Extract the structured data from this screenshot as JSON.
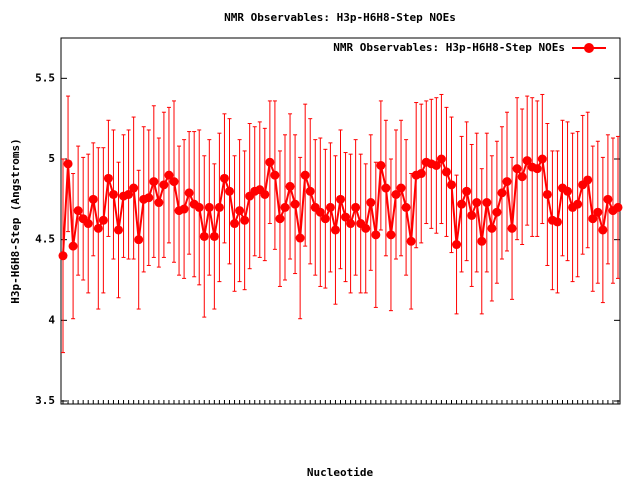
{
  "chart_data": {
    "type": "line",
    "title": "NMR Observables: H3p-H6H8-Step NOEs",
    "y_label": "H3p-H6H8-Step (Angstroms)",
    "x_label": "Nucleotide",
    "categories": [
      null,
      null,
      null,
      null,
      null,
      null,
      null,
      null,
      null,
      null,
      null,
      null,
      null,
      null,
      null,
      null,
      null,
      null,
      null,
      null,
      null,
      null,
      null,
      null,
      null,
      null,
      null,
      null,
      null,
      null,
      null,
      null,
      null,
      null,
      null,
      null,
      null,
      null,
      null,
      null,
      null,
      null,
      null,
      null,
      null,
      null,
      null,
      null,
      null,
      null,
      null,
      null,
      null,
      null,
      null,
      null,
      null,
      null,
      null,
      null,
      null,
      null,
      null,
      null,
      null,
      null,
      null,
      null,
      null,
      null,
      null,
      null,
      null,
      null,
      null,
      null,
      null,
      null,
      null,
      null,
      null,
      null,
      null,
      null,
      null,
      null,
      null,
      null,
      null,
      null,
      null,
      null,
      null,
      null,
      null,
      null,
      null,
      null,
      null,
      null,
      null,
      null,
      null,
      null,
      null,
      null,
      null,
      null,
      null,
      null,
      null
    ],
    "series": [
      {
        "name": "NMR Observables: H3p-H6H8-Step NOEs",
        "color": "#ff0000",
        "values": [
          4.4,
          4.97,
          4.46,
          4.68,
          4.63,
          4.6,
          4.75,
          4.57,
          4.62,
          4.88,
          4.78,
          4.56,
          4.77,
          4.78,
          4.82,
          4.5,
          4.75,
          4.76,
          4.86,
          4.73,
          4.84,
          4.9,
          4.86,
          4.68,
          4.69,
          4.79,
          4.72,
          4.7,
          4.52,
          4.7,
          4.52,
          4.7,
          4.88,
          4.8,
          4.6,
          4.68,
          4.62,
          4.77,
          4.8,
          4.81,
          4.78,
          4.98,
          4.9,
          4.63,
          4.7,
          4.83,
          4.72,
          4.51,
          4.9,
          4.8,
          4.7,
          4.67,
          4.63,
          4.7,
          4.56,
          4.75,
          4.64,
          4.6,
          4.7,
          4.6,
          4.57,
          4.73,
          4.53,
          4.96,
          4.82,
          4.53,
          4.78,
          4.82,
          4.7,
          4.49,
          4.9,
          4.91,
          4.98,
          4.97,
          4.96,
          5.0,
          4.92,
          4.84,
          4.47,
          4.72,
          4.8,
          4.65,
          4.73,
          4.49,
          4.73,
          4.57,
          4.67,
          4.79,
          4.86,
          4.57,
          4.94,
          4.89,
          4.99,
          4.95,
          4.94,
          5.0,
          4.78,
          4.62,
          4.61,
          4.82,
          4.8,
          4.7,
          4.72,
          4.84,
          4.87,
          4.63,
          4.67,
          4.56,
          4.75,
          4.68,
          4.7
        ],
        "errors": [
          0.6,
          0.42,
          0.45,
          0.4,
          0.38,
          0.43,
          0.35,
          0.5,
          0.45,
          0.36,
          0.4,
          0.42,
          0.38,
          0.4,
          0.44,
          0.43,
          0.45,
          0.42,
          0.47,
          0.4,
          0.45,
          0.42,
          0.5,
          0.4,
          0.43,
          0.38,
          0.45,
          0.48,
          0.5,
          0.42,
          0.45,
          0.46,
          0.4,
          0.45,
          0.42,
          0.44,
          0.43,
          0.45,
          0.4,
          0.42,
          0.41,
          0.38,
          0.46,
          0.42,
          0.45,
          0.45,
          0.43,
          0.5,
          0.44,
          0.45,
          0.42,
          0.46,
          0.43,
          0.4,
          0.46,
          0.43,
          0.4,
          0.43,
          0.42,
          0.43,
          0.4,
          0.42,
          0.45,
          0.4,
          0.42,
          0.47,
          0.4,
          0.42,
          0.42,
          0.42,
          0.45,
          0.43,
          0.38,
          0.4,
          0.42,
          0.4,
          0.4,
          0.42,
          0.43,
          0.42,
          0.43,
          0.44,
          0.43,
          0.45,
          0.43,
          0.45,
          0.44,
          0.41,
          0.43,
          0.44,
          0.44,
          0.42,
          0.4,
          0.43,
          0.42,
          0.4,
          0.44,
          0.43,
          0.44,
          0.42,
          0.43,
          0.46,
          0.45,
          0.43,
          0.42,
          0.45,
          0.44,
          0.45,
          0.4,
          0.45,
          0.44
        ]
      }
    ],
    "ylim": [
      3.5,
      5.75
    ],
    "yticks": [
      3.5,
      4,
      4.5,
      5,
      5.5
    ],
    "legend": "upper right"
  }
}
